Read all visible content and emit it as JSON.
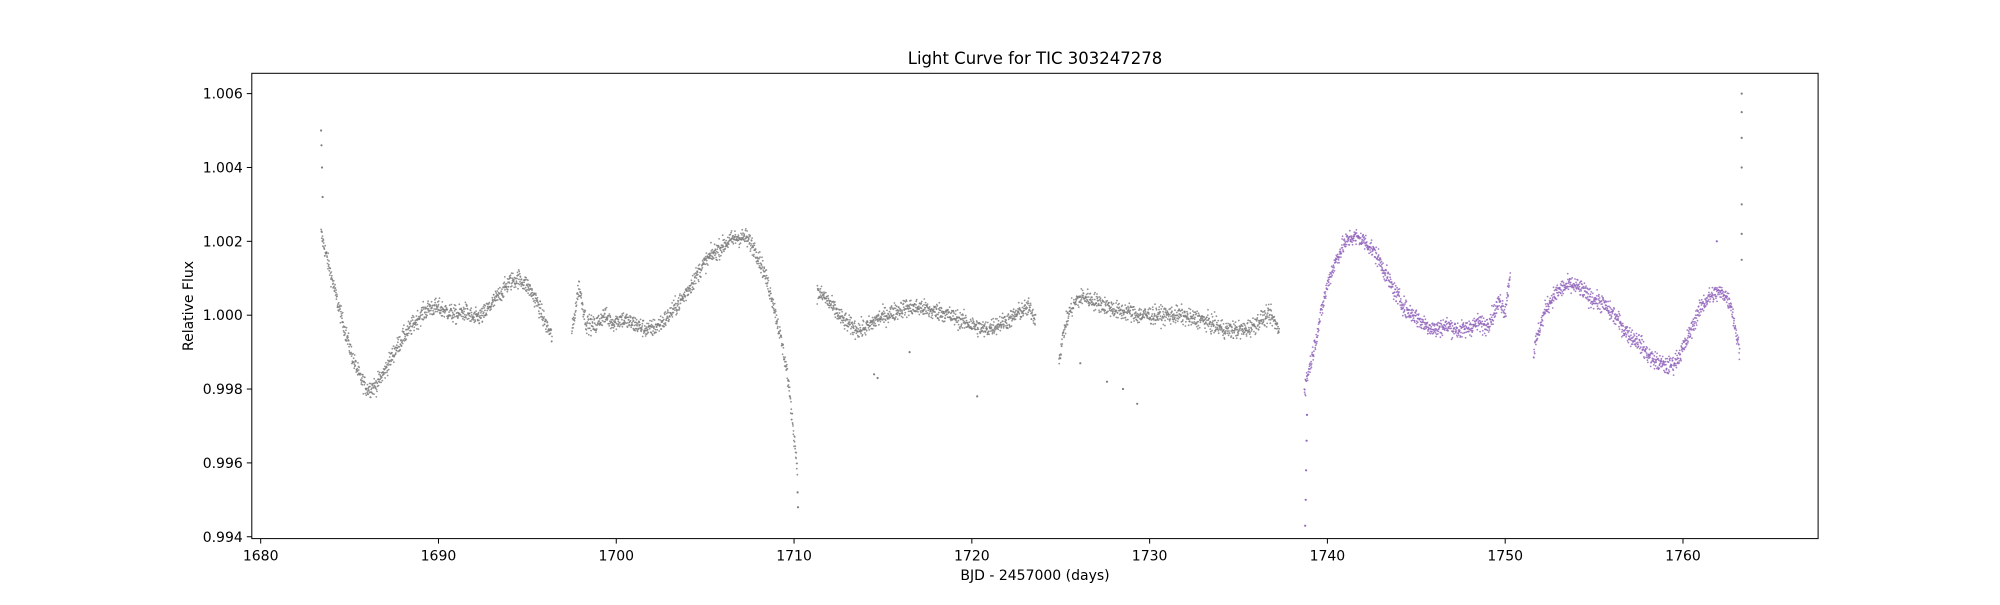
{
  "chart_data": {
    "type": "scatter",
    "title": "Light Curve for TIC 303247278",
    "xlabel": "BJD - 2457000 (days)",
    "ylabel": "Relative Flux",
    "xlim": [
      1679.5,
      1767.6
    ],
    "ylim": [
      0.99395,
      1.00655
    ],
    "x_ticks": [
      1680,
      1690,
      1700,
      1710,
      1720,
      1730,
      1740,
      1750,
      1760
    ],
    "x_tick_labels": [
      "1680",
      "1690",
      "1700",
      "1710",
      "1720",
      "1730",
      "1740",
      "1750",
      "1760"
    ],
    "y_ticks": [
      0.994,
      0.996,
      0.998,
      1.0,
      1.002,
      1.004,
      1.006
    ],
    "y_tick_labels": [
      "0.994",
      "0.996",
      "0.998",
      "1.000",
      "1.002",
      "1.004",
      "1.006"
    ],
    "grid": false,
    "legend": "none",
    "colors": {
      "series_a": "#7f7f7f",
      "series_b": "#9467bd"
    },
    "series": [
      {
        "color": "#7f7f7f",
        "segments": [
          {
            "x": [
              1683.4,
              1683.5,
              1683.7,
              1684.0,
              1684.4,
              1684.8,
              1685.2,
              1685.6,
              1686.0,
              1686.5,
              1687.0,
              1687.5,
              1688.0,
              1688.5,
              1689.0,
              1689.5,
              1690.0,
              1690.5,
              1691.0,
              1691.5,
              1692.0,
              1692.5,
              1693.0,
              1693.5,
              1694.0,
              1694.5,
              1695.0,
              1695.5,
              1696.0,
              1696.4
            ],
            "y": [
              1.0022,
              1.002,
              1.0016,
              1.001,
              1.0002,
              0.9995,
              0.9988,
              0.9983,
              0.998,
              0.9981,
              0.9985,
              0.999,
              0.9994,
              0.9997,
              1.0,
              1.0002,
              1.0002,
              1.0001,
              1.0,
              1.0001,
              0.9999,
              1.0,
              1.0003,
              1.0006,
              1.0009,
              1.001,
              1.0008,
              1.0004,
              0.9998,
              0.9994
            ]
          },
          {
            "x": [
              1697.5,
              1697.9,
              1698.3,
              1698.8,
              1699.3,
              1699.8,
              1700.3,
              1700.8,
              1701.3,
              1701.8,
              1702.3,
              1702.8,
              1703.3,
              1703.8,
              1704.3,
              1704.8,
              1705.3,
              1705.8,
              1706.3,
              1706.8,
              1707.3,
              1707.8,
              1708.3,
              1708.8,
              1709.2,
              1709.6,
              1709.9,
              1710.2
            ],
            "y": [
              0.9995,
              1.0008,
              0.9998,
              0.9997,
              1.0,
              0.9998,
              0.9999,
              0.9998,
              0.9997,
              0.9996,
              0.9997,
              0.9999,
              1.0002,
              1.0005,
              1.0009,
              1.0013,
              1.0016,
              1.0018,
              1.002,
              1.0021,
              1.0021,
              1.0018,
              1.0012,
              1.0004,
              0.9995,
              0.9985,
              0.9972,
              0.9958
            ]
          },
          {
            "x": [
              1711.3,
              1711.7,
              1712.2,
              1712.7,
              1713.2,
              1713.7,
              1714.2,
              1714.7,
              1715.2,
              1715.7,
              1716.2,
              1716.7,
              1717.2,
              1717.7,
              1718.2,
              1718.7,
              1719.2,
              1719.7,
              1720.2,
              1720.7,
              1721.2,
              1721.7,
              1722.2,
              1722.7,
              1723.2,
              1723.6
            ],
            "y": [
              1.0006,
              1.0005,
              1.0002,
              0.9999,
              0.9997,
              0.9996,
              0.9997,
              0.9999,
              1.0,
              1.0001,
              1.0002,
              1.0002,
              1.0002,
              1.0001,
              1.0001,
              1.0,
              0.9999,
              0.9998,
              0.9997,
              0.9996,
              0.9997,
              0.9998,
              0.9999,
              1.0001,
              1.0002,
              0.9999
            ]
          },
          {
            "x": [
              1724.9,
              1725.2,
              1725.5,
              1725.9,
              1726.3,
              1726.8,
              1727.3,
              1727.8,
              1728.3,
              1728.8,
              1729.3,
              1729.8,
              1730.3,
              1730.8,
              1731.3,
              1731.8,
              1732.3,
              1732.8,
              1733.3,
              1733.8,
              1734.3,
              1734.8,
              1735.3,
              1735.8,
              1736.3,
              1736.8,
              1737.3
            ],
            "y": [
              0.9988,
              0.9996,
              1.0001,
              1.0004,
              1.0005,
              1.0004,
              1.0003,
              1.0002,
              1.0001,
              1.0001,
              1.0,
              1.0,
              1.0,
              1.0,
              1.0,
              1.0,
              0.9999,
              0.9999,
              0.9998,
              0.9997,
              0.9996,
              0.9996,
              0.9996,
              0.9997,
              0.9999,
              1.0,
              0.9996
            ]
          }
        ]
      },
      {
        "color": "#9467bd",
        "segments": [
          {
            "x": [
              1738.7,
              1738.9,
              1739.2,
              1739.5,
              1739.8,
              1740.1,
              1740.5,
              1740.9,
              1741.3,
              1741.7,
              1742.1,
              1742.5,
              1742.9,
              1743.3,
              1743.7,
              1744.1,
              1744.5,
              1744.9,
              1745.3,
              1745.7,
              1746.1,
              1746.5,
              1746.9,
              1747.3,
              1747.7,
              1748.1,
              1748.5,
              1748.9,
              1749.3,
              1749.7,
              1750.0,
              1750.3
            ],
            "y": [
              0.998,
              0.9984,
              0.999,
              0.9997,
              1.0004,
              1.001,
              1.0015,
              1.0019,
              1.0021,
              1.0021,
              1.002,
              1.0018,
              1.0015,
              1.0011,
              1.0007,
              1.0004,
              1.0001,
              1.0,
              0.9998,
              0.9997,
              0.9996,
              0.9997,
              0.9997,
              0.9996,
              0.9996,
              0.9997,
              0.9998,
              0.9997,
              1.0,
              1.0004,
              1.0001,
              1.0012
            ]
          },
          {
            "x": [
              1751.6,
              1751.9,
              1752.3,
              1752.7,
              1753.1,
              1753.5,
              1753.9,
              1754.3,
              1754.7,
              1755.1,
              1755.5,
              1755.9,
              1756.3,
              1756.7,
              1757.1,
              1757.5,
              1757.9,
              1758.3,
              1758.7,
              1759.1,
              1759.5,
              1759.9,
              1760.3,
              1760.7,
              1761.1,
              1761.5,
              1761.9,
              1762.3,
              1762.7,
              1763.0,
              1763.2
            ],
            "y": [
              0.999,
              0.9996,
              1.0002,
              1.0005,
              1.0007,
              1.0008,
              1.0008,
              1.0007,
              1.0005,
              1.0004,
              1.0003,
              1.0001,
              0.9999,
              0.9996,
              0.9994,
              0.9993,
              0.999,
              0.9988,
              0.9987,
              0.9986,
              0.9987,
              0.999,
              0.9994,
              0.9999,
              1.0003,
              1.0005,
              1.0006,
              1.0006,
              1.0003,
              0.9995,
              0.999
            ]
          }
        ]
      }
    ],
    "outliers": [
      {
        "color": "#7f7f7f",
        "x": [
          1683.4,
          1683.42,
          1683.45,
          1683.48,
          1710.2,
          1710.22,
          1714.5,
          1714.7,
          1720.3,
          1728.5,
          1729.3,
          1727.6,
          1726.1,
          1716.5,
          1763.3,
          1763.3,
          1763.3,
          1763.3,
          1763.3,
          1763.3,
          1763.3
        ],
        "y": [
          1.005,
          1.0046,
          1.004,
          1.0032,
          0.9952,
          0.9948,
          0.9984,
          0.9983,
          0.9978,
          0.998,
          0.9976,
          0.9982,
          0.9987,
          0.999,
          1.006,
          1.0055,
          1.0048,
          1.004,
          1.003,
          1.0022,
          1.0015
        ]
      },
      {
        "color": "#9467bd",
        "x": [
          1738.75,
          1738.78,
          1738.8,
          1738.83,
          1738.85,
          1761.9
        ],
        "y": [
          0.9943,
          0.995,
          0.9958,
          0.9966,
          0.9973,
          1.002
        ]
      }
    ]
  }
}
